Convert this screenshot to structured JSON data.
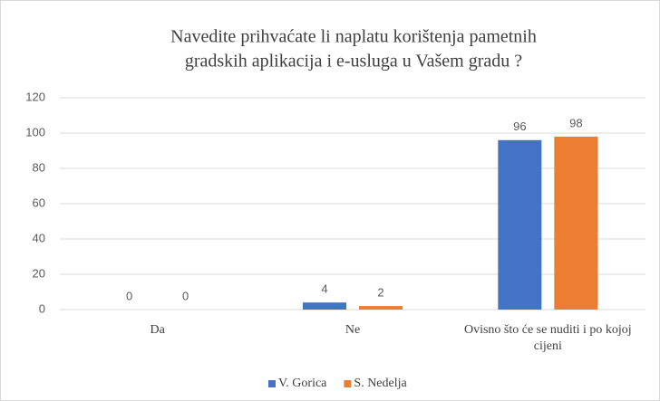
{
  "chart_data": {
    "type": "bar",
    "title": [
      "Navedite prihvaćate li naplatu korištenja pametnih",
      "gradskih aplikacija  i e-usluga u Vašem gradu ?"
    ],
    "categories": [
      "Da",
      "Ne",
      "Ovisno što će se nuditi i po kojoj cijeni"
    ],
    "series": [
      {
        "name": "V. Gorica",
        "color": "#4472c4",
        "values": [
          0,
          4,
          96
        ]
      },
      {
        "name": "S. Nedelja",
        "color": "#ed7d31",
        "values": [
          0,
          2,
          98
        ]
      }
    ],
    "ylim": [
      0,
      120
    ],
    "yticks": [
      0,
      20,
      40,
      60,
      80,
      100,
      120
    ],
    "grid": true,
    "legend": "bottom"
  }
}
